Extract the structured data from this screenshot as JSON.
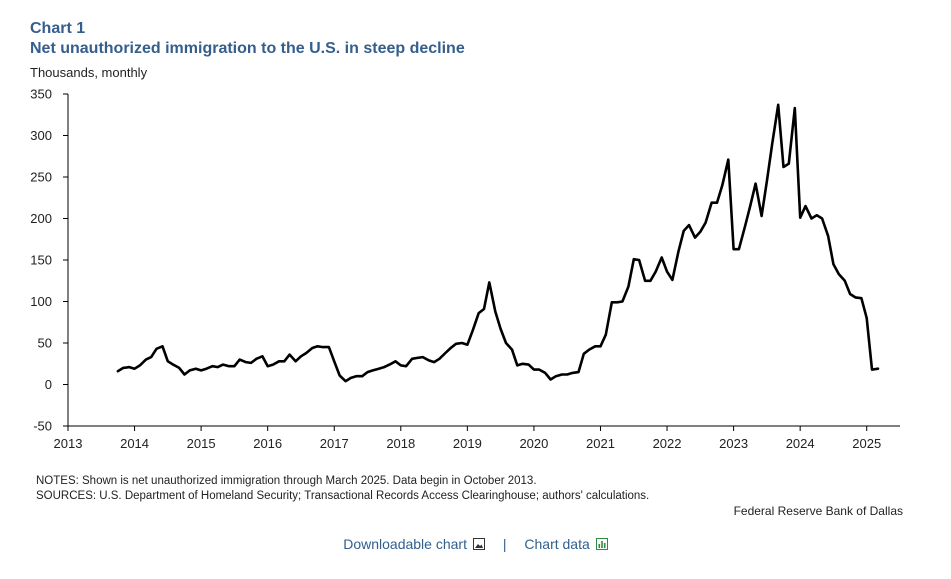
{
  "header": {
    "chart_label": "Chart 1",
    "title": "Net unauthorized immigration to the U.S. in steep decline",
    "units": "Thousands,  monthly"
  },
  "footer": {
    "notes": "NOTES: Shown is net unauthorized immigration through March 2025. Data begin in October 2013.",
    "sources": "SOURCES: U.S. Department of Homeland Security; Transactional Records Access Clearinghouse; authors' calculations.",
    "org": "Federal Reserve Bank of Dallas"
  },
  "links": {
    "downloadable": "Downloadable chart",
    "separator": "|",
    "chart_data": "Chart data",
    "downloadable_icon": "image-icon",
    "chart_data_icon": "bar-chart-icon",
    "color": "#2f5f8f"
  },
  "chart_data": {
    "type": "line",
    "title": "Net unauthorized immigration to the U.S. in steep decline",
    "ylabel": "Thousands,  monthly",
    "xlim": [
      2013,
      2025.5
    ],
    "ylim": [
      -50,
      350
    ],
    "xticks": [
      2013,
      2014,
      2015,
      2016,
      2017,
      2018,
      2019,
      2020,
      2021,
      2022,
      2023,
      2024,
      2025
    ],
    "yticks": [
      -50,
      0,
      50,
      100,
      150,
      200,
      250,
      300,
      350
    ],
    "grid": false,
    "line_color": "#000000",
    "x": [
      2013.75,
      2013.83,
      2013.92,
      2014.0,
      2014.08,
      2014.17,
      2014.25,
      2014.33,
      2014.42,
      2014.5,
      2014.58,
      2014.67,
      2014.75,
      2014.83,
      2014.92,
      2015.0,
      2015.08,
      2015.17,
      2015.25,
      2015.33,
      2015.42,
      2015.5,
      2015.58,
      2015.67,
      2015.75,
      2015.83,
      2015.92,
      2016.0,
      2016.08,
      2016.17,
      2016.25,
      2016.33,
      2016.42,
      2016.5,
      2016.58,
      2016.67,
      2016.75,
      2016.83,
      2016.92,
      2017.0,
      2017.08,
      2017.17,
      2017.25,
      2017.33,
      2017.42,
      2017.5,
      2017.58,
      2017.67,
      2017.75,
      2017.83,
      2017.92,
      2018.0,
      2018.08,
      2018.17,
      2018.25,
      2018.33,
      2018.42,
      2018.5,
      2018.58,
      2018.67,
      2018.75,
      2018.83,
      2018.92,
      2019.0,
      2019.08,
      2019.17,
      2019.25,
      2019.33,
      2019.42,
      2019.5,
      2019.58,
      2019.67,
      2019.75,
      2019.83,
      2019.92,
      2020.0,
      2020.08,
      2020.17,
      2020.25,
      2020.33,
      2020.42,
      2020.5,
      2020.58,
      2020.67,
      2020.75,
      2020.83,
      2020.92,
      2021.0,
      2021.08,
      2021.17,
      2021.25,
      2021.33,
      2021.42,
      2021.5,
      2021.58,
      2021.67,
      2021.75,
      2021.83,
      2021.92,
      2022.0,
      2022.08,
      2022.17,
      2022.25,
      2022.33,
      2022.42,
      2022.5,
      2022.58,
      2022.67,
      2022.75,
      2022.83,
      2022.92,
      2023.0,
      2023.08,
      2023.17,
      2023.25,
      2023.33,
      2023.42,
      2023.5,
      2023.58,
      2023.67,
      2023.75,
      2023.83,
      2023.92,
      2024.0,
      2024.08,
      2024.17,
      2024.25,
      2024.33,
      2024.42,
      2024.5,
      2024.58,
      2024.67,
      2024.75,
      2024.83,
      2024.92,
      2025.0,
      2025.08,
      2025.17
    ],
    "values": [
      16,
      20,
      21,
      19,
      23,
      30,
      33,
      43,
      46,
      28,
      24,
      20,
      12,
      17,
      19,
      17,
      19,
      22,
      21,
      24,
      22,
      22,
      30,
      27,
      26,
      31,
      34,
      22,
      24,
      28,
      28,
      36,
      28,
      34,
      38,
      44,
      46,
      45,
      45,
      28,
      11,
      4,
      8,
      10,
      10,
      15,
      17,
      19,
      21,
      24,
      28,
      23,
      22,
      31,
      32,
      33,
      29,
      27,
      31,
      38,
      44,
      49,
      50,
      48,
      65,
      86,
      91,
      123,
      88,
      67,
      50,
      42,
      23,
      25,
      24,
      18,
      18,
      14,
      6,
      10,
      12,
      12,
      14,
      15,
      37,
      42,
      46,
      46,
      60,
      99,
      99,
      100,
      118,
      151,
      150,
      125,
      125,
      136,
      153,
      136,
      126,
      160,
      185,
      192,
      177,
      184,
      195,
      219,
      219,
      240,
      271,
      163,
      163,
      190,
      215,
      242,
      203,
      245,
      290,
      337,
      262,
      266,
      333,
      201,
      215,
      200,
      204,
      200,
      179,
      145,
      133,
      125,
      109,
      105,
      104,
      80,
      18,
      19
    ]
  }
}
